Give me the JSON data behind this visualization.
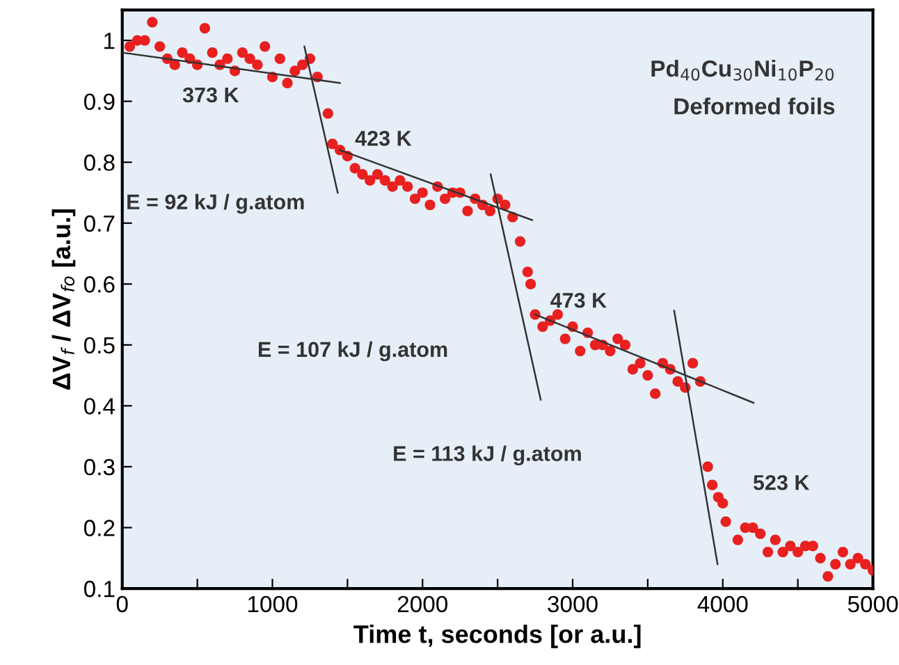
{
  "chart_data": {
    "type": "scatter",
    "xlabel": "Time t, seconds [or a.u.]",
    "ylabel": "ΔV$_{f}$ / ΔV$_{fo}$ [a.u.]",
    "xlim": [
      0,
      5000
    ],
    "ylim": [
      0.1,
      1.05
    ],
    "xticks": [
      0,
      {
        "value": 500,
        "label": null
      },
      1000,
      {
        "value": 1500,
        "label": null
      },
      2000,
      {
        "value": 2500,
        "label": null
      },
      3000,
      {
        "value": 3500,
        "label": null
      },
      4000,
      {
        "value": 4500,
        "label": null
      },
      5000
    ],
    "yticks": [
      0.1,
      0.2,
      0.3,
      0.4,
      0.5,
      0.6,
      0.7,
      0.8,
      0.9,
      1
    ],
    "grid": false,
    "marker": "circle",
    "annotations": [
      "Pd$_{40}$Cu$_{30}$Ni$_{10}$P$_{20}$",
      "Deformed foils",
      "373 K",
      "423 K",
      "E = 92 kJ / g.atom",
      "E = 107 kJ / g.atom",
      "473 K",
      "E = 113 kJ / g.atom",
      "523 K"
    ],
    "series": [
      {
        "color": "#e82020",
        "x": [
          50,
          100,
          150,
          200,
          250,
          300,
          350,
          400,
          450,
          500,
          550,
          600,
          650,
          700,
          750,
          800,
          850,
          900,
          950,
          1000,
          1050,
          1100,
          1150,
          1200,
          1250,
          1300,
          1370,
          1400,
          1450,
          1500,
          1550,
          1600,
          1650,
          1700,
          1750,
          1800,
          1850,
          1900,
          1950,
          2000,
          2050,
          2100,
          2150,
          2200,
          2250,
          2300,
          2350,
          2400,
          2450,
          2500,
          2550,
          2600,
          2650,
          2700,
          2720,
          2750,
          2800,
          2850,
          2900,
          2950,
          3000,
          3050,
          3100,
          3150,
          3200,
          3250,
          3300,
          3350,
          3400,
          3450,
          3500,
          3550,
          3600,
          3650,
          3700,
          3750,
          3800,
          3850,
          3900,
          3930,
          3970,
          4000,
          4020,
          4100,
          4150,
          4200,
          4250,
          4300,
          4350,
          4400,
          4450,
          4500,
          4550,
          4600,
          4650,
          4700,
          4750,
          4800,
          4850,
          4900,
          4950,
          5000
        ],
        "values": [
          0.99,
          1.0,
          1.0,
          1.03,
          0.99,
          0.97,
          0.96,
          0.98,
          0.97,
          0.96,
          1.02,
          0.98,
          0.96,
          0.97,
          0.95,
          0.98,
          0.97,
          0.96,
          0.99,
          0.94,
          0.97,
          0.93,
          0.95,
          0.96,
          0.97,
          0.94,
          0.88,
          0.83,
          0.82,
          0.81,
          0.79,
          0.78,
          0.77,
          0.78,
          0.77,
          0.76,
          0.77,
          0.76,
          0.74,
          0.75,
          0.73,
          0.76,
          0.74,
          0.75,
          0.75,
          0.72,
          0.74,
          0.73,
          0.72,
          0.74,
          0.73,
          0.71,
          0.67,
          0.62,
          0.6,
          0.55,
          0.53,
          0.54,
          0.55,
          0.51,
          0.53,
          0.49,
          0.52,
          0.5,
          0.5,
          0.49,
          0.51,
          0.5,
          0.46,
          0.47,
          0.45,
          0.42,
          0.47,
          0.46,
          0.44,
          0.43,
          0.47,
          0.44,
          0.3,
          0.27,
          0.25,
          0.24,
          0.21,
          0.18,
          0.2,
          0.2,
          0.19,
          0.16,
          0.18,
          0.16,
          0.17,
          0.16,
          0.17,
          0.17,
          0.15,
          0.12,
          0.14,
          0.16,
          0.14,
          0.15,
          0.14,
          0.13
        ]
      },
      {
        "type": "line",
        "marker": "none",
        "color": "#333333",
        "x": [
          0,
          1450
        ],
        "values": [
          0.98,
          0.93
        ]
      },
      {
        "type": "line",
        "marker": "none",
        "color": "#333333",
        "x": [
          1213,
          1435
        ],
        "values": [
          0.99,
          0.75
        ]
      },
      {
        "type": "line",
        "marker": "none",
        "color": "#333333",
        "x": [
          1450,
          2730
        ],
        "values": [
          0.82,
          0.705
        ]
      },
      {
        "type": "line",
        "marker": "none",
        "color": "#333333",
        "x": [
          2454,
          2787
        ],
        "values": [
          0.78,
          0.41
        ]
      },
      {
        "type": "line",
        "marker": "none",
        "color": "#333333",
        "x": [
          2750,
          4204
        ],
        "values": [
          0.55,
          0.405
        ]
      },
      {
        "type": "line",
        "marker": "none",
        "color": "#333333",
        "x": [
          3676,
          3965
        ],
        "values": [
          0.556,
          0.14
        ]
      }
    ]
  }
}
